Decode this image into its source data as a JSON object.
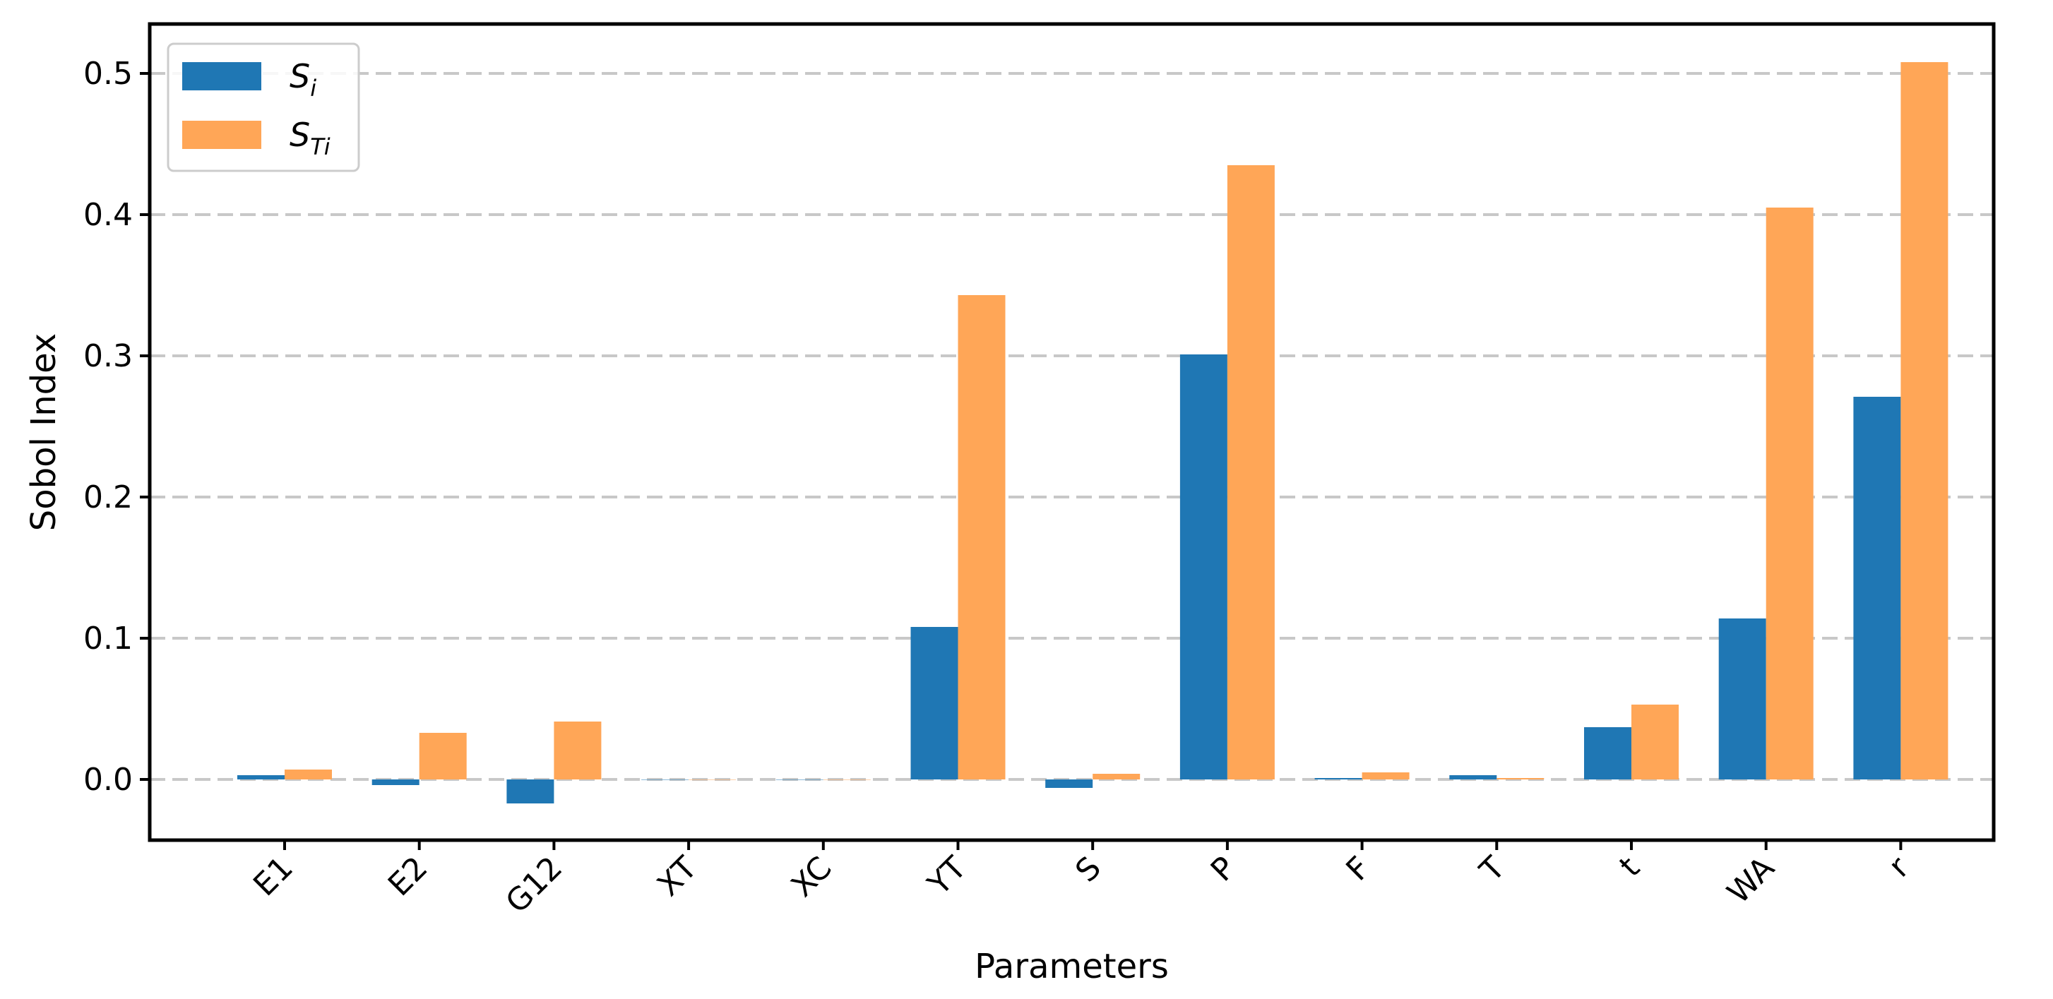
{
  "chart_data": {
    "type": "bar",
    "xlabel": "Parameters",
    "ylabel": "Sobol Index",
    "categories": [
      "E1",
      "E2",
      "G12",
      "XT",
      "XC",
      "YT",
      "S",
      "P",
      "F",
      "T",
      "t",
      "WA",
      "r"
    ],
    "ylim": [
      -0.043,
      0.535
    ],
    "yticks": [
      "0.0",
      "0.1",
      "0.2",
      "0.3",
      "0.4",
      "0.5"
    ],
    "grid": "horizontal dashed",
    "legend_position": "top-left",
    "series": [
      {
        "name": "S_i",
        "label_main": "S",
        "label_sub": "i",
        "color": "#1f77b4",
        "values": [
          0.003,
          -0.004,
          -0.017,
          0.0,
          0.0,
          0.108,
          -0.006,
          0.301,
          0.001,
          0.003,
          0.037,
          0.114,
          0.271
        ]
      },
      {
        "name": "S_Ti",
        "label_main": "S",
        "label_sub": "Ti",
        "color": "#ffa657",
        "values": [
          0.007,
          0.033,
          0.041,
          0.0,
          0.0,
          0.343,
          0.004,
          0.435,
          0.005,
          0.001,
          0.053,
          0.405,
          0.508
        ]
      }
    ]
  }
}
